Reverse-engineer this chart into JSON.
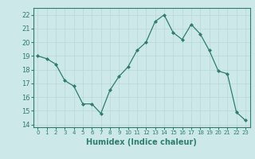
{
  "x": [
    0,
    1,
    2,
    3,
    4,
    5,
    6,
    7,
    8,
    9,
    10,
    11,
    12,
    13,
    14,
    15,
    16,
    17,
    18,
    19,
    20,
    21,
    22,
    23
  ],
  "y": [
    19.0,
    18.8,
    18.4,
    17.2,
    16.8,
    15.5,
    15.5,
    14.8,
    16.5,
    17.5,
    18.2,
    19.4,
    20.0,
    21.5,
    22.0,
    20.7,
    20.2,
    21.3,
    20.6,
    19.4,
    17.9,
    17.7,
    14.9,
    14.3
  ],
  "line_color": "#2e7d6e",
  "marker_color": "#2e7d6e",
  "bg_color": "#cce8e8",
  "grid_color": "#b8d8d8",
  "xlabel": "Humidex (Indice chaleur)",
  "xlim": [
    -0.5,
    23.5
  ],
  "ylim": [
    13.8,
    22.5
  ],
  "yticks": [
    14,
    15,
    16,
    17,
    18,
    19,
    20,
    21,
    22
  ],
  "xtick_labels": [
    "0",
    "1",
    "2",
    "3",
    "4",
    "5",
    "6",
    "7",
    "8",
    "9",
    "10",
    "11",
    "12",
    "13",
    "14",
    "15",
    "16",
    "17",
    "18",
    "19",
    "20",
    "21",
    "22",
    "23"
  ]
}
